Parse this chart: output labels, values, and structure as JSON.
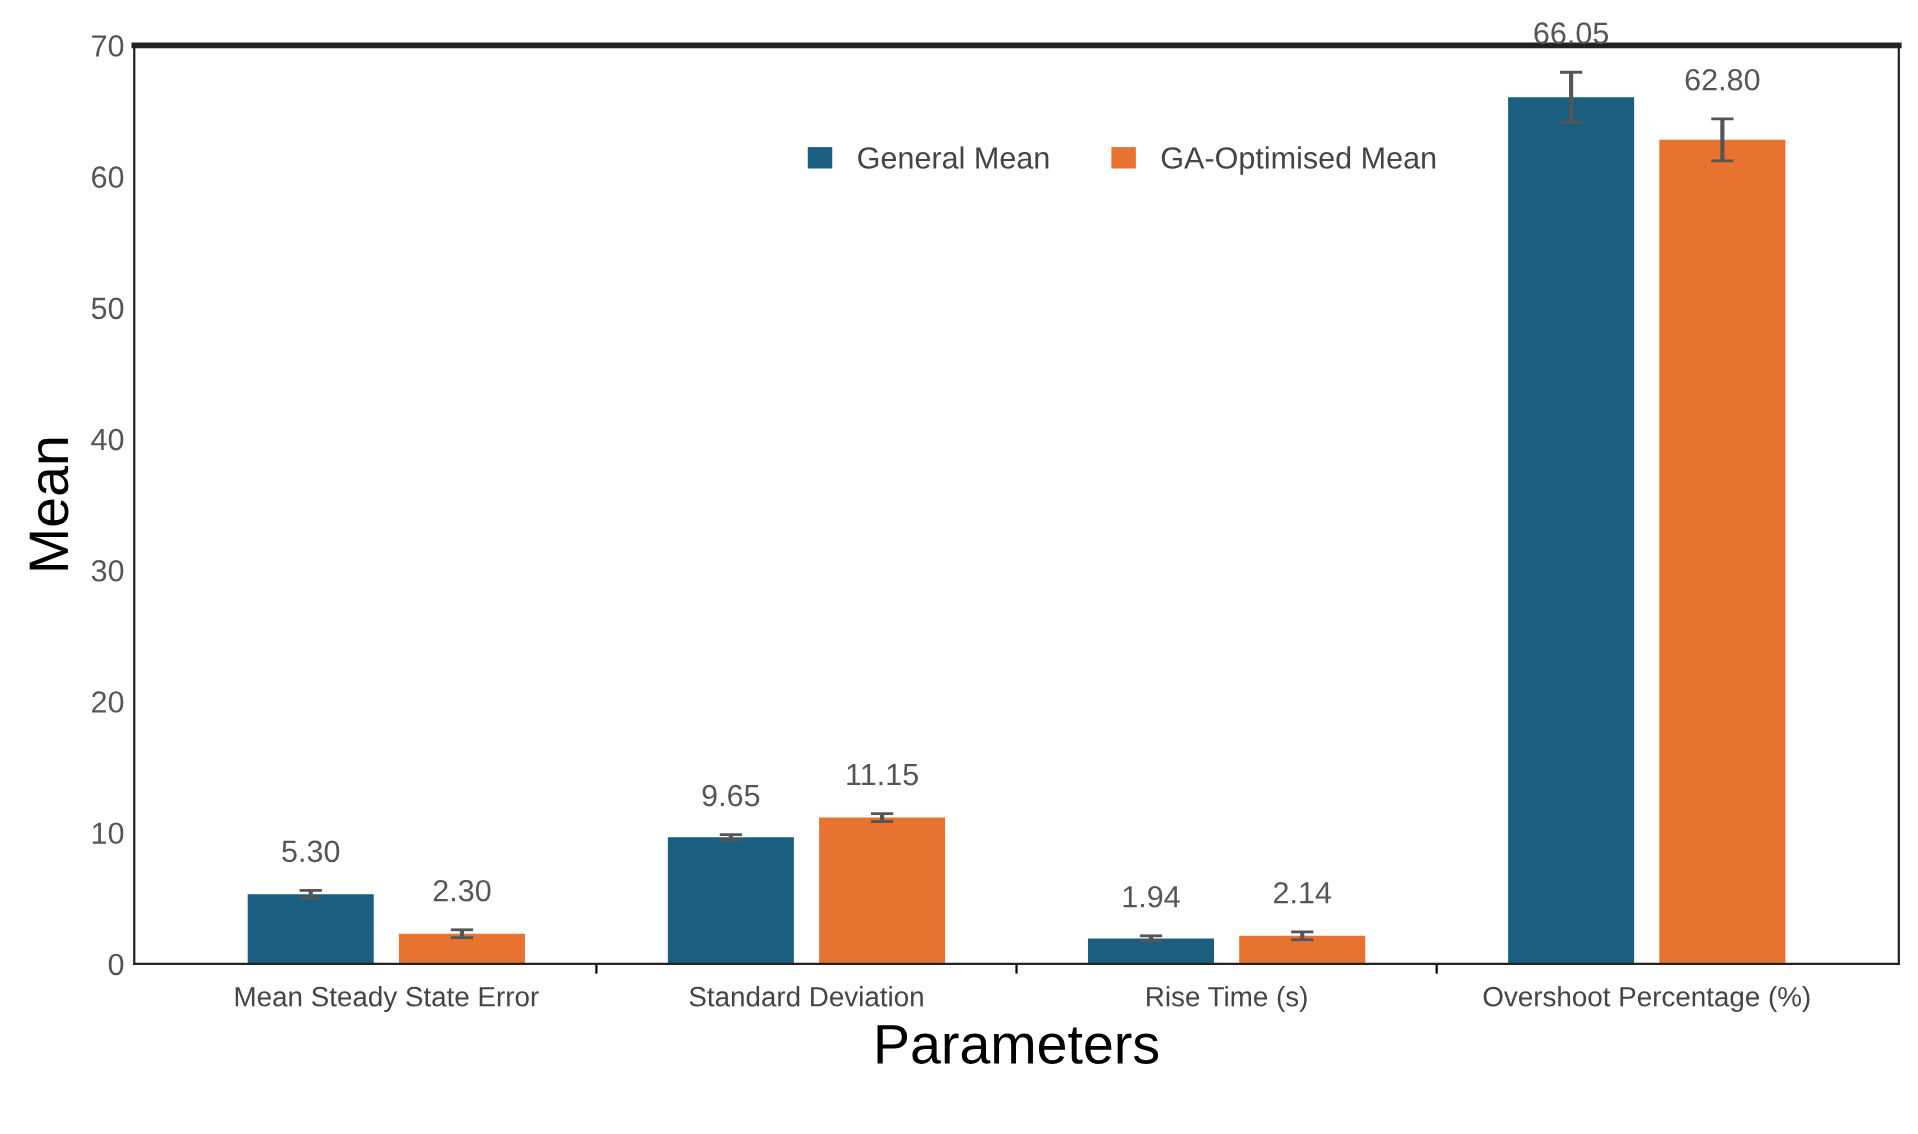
{
  "chart_data": {
    "type": "bar",
    "xlabel": "Parameters",
    "ylabel": "Mean",
    "categories": [
      "Mean Steady State Error",
      "Standard Deviation",
      "Rise Time (s)",
      "Overshoot Percentage (%)"
    ],
    "series": [
      {
        "name": "General Mean",
        "color": "#1a5f80",
        "values": [
          5.3,
          9.65,
          1.94,
          66.05
        ],
        "value_labels": [
          "5.30",
          "9.65",
          "1.94",
          "66.05"
        ],
        "errors": [
          0.3,
          0.2,
          0.2,
          1.9
        ]
      },
      {
        "name": "GA-Optimised Mean",
        "color": "#e87230",
        "values": [
          2.3,
          11.15,
          2.14,
          62.8
        ],
        "value_labels": [
          "2.30",
          "11.15",
          "2.14",
          "62.80"
        ],
        "errors": [
          0.3,
          0.3,
          0.3,
          1.6
        ]
      }
    ],
    "ylim": [
      0,
      70
    ],
    "yticks": [
      0,
      10,
      20,
      30,
      40,
      50,
      60,
      70
    ],
    "grid": false,
    "legend": "top"
  }
}
